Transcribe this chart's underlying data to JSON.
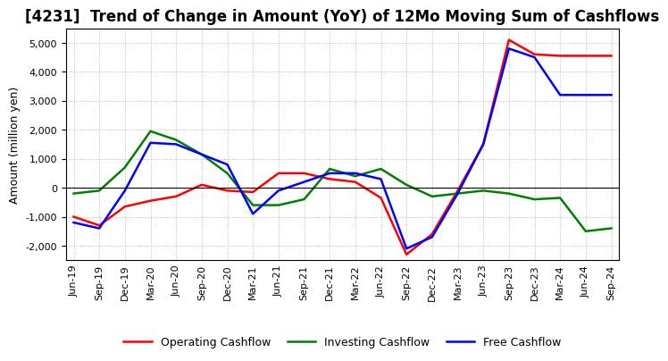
{
  "title": "[4231]  Trend of Change in Amount (YoY) of 12Mo Moving Sum of Cashflows",
  "ylabel": "Amount (million yen)",
  "ylim": [
    -2500,
    5500
  ],
  "yticks": [
    -2000,
    -1000,
    0,
    1000,
    2000,
    3000,
    4000,
    5000
  ],
  "x_labels": [
    "Jun-19",
    "Sep-19",
    "Dec-19",
    "Mar-20",
    "Jun-20",
    "Sep-20",
    "Dec-20",
    "Mar-21",
    "Jun-21",
    "Sep-21",
    "Dec-21",
    "Mar-22",
    "Jun-22",
    "Sep-22",
    "Dec-22",
    "Mar-23",
    "Jun-23",
    "Sep-23",
    "Dec-23",
    "Mar-24",
    "Jun-24",
    "Sep-24"
  ],
  "operating": [
    -1000,
    -1300,
    -650,
    -450,
    -300,
    100,
    -100,
    -150,
    500,
    500,
    300,
    200,
    -350,
    -2300,
    -1600,
    -100,
    1500,
    5100,
    4600,
    4550,
    4550,
    4550
  ],
  "investing": [
    -200,
    -100,
    700,
    1950,
    1650,
    1150,
    500,
    -600,
    -600,
    -400,
    650,
    400,
    650,
    100,
    -300,
    -200,
    -100,
    -200,
    -400,
    -350,
    -1500,
    -1400
  ],
  "free": [
    -1200,
    -1400,
    -100,
    1550,
    1500,
    1150,
    800,
    -900,
    -100,
    200,
    500,
    500,
    300,
    -2100,
    -1700,
    -200,
    1500,
    4800,
    4500,
    3200,
    3200,
    3200
  ],
  "operating_color": "#ff0000",
  "investing_color": "#008000",
  "free_color": "#0000ff",
  "background_color": "#ffffff",
  "grid_color": "#aaaaaa",
  "title_fontsize": 12,
  "label_fontsize": 9,
  "tick_fontsize": 8,
  "legend_fontsize": 9
}
